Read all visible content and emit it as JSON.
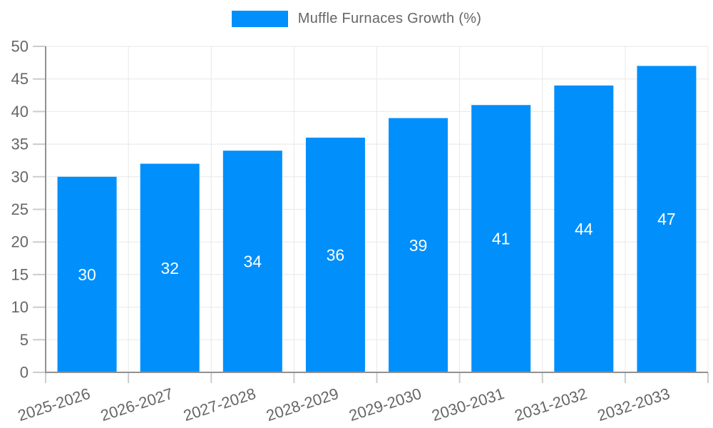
{
  "chart_data": {
    "type": "bar",
    "title": "Muffle Furnaces Growth (%)",
    "categories": [
      "2025-2026",
      "2026-2027",
      "2027-2028",
      "2028-2029",
      "2029-2030",
      "2030-2031",
      "2031-2032",
      "2032-2033"
    ],
    "series": [
      {
        "name": "Muffle Furnaces Growth (%)",
        "values": [
          30,
          32,
          34,
          36,
          39,
          41,
          44,
          47
        ],
        "color": "#008FFB"
      }
    ],
    "xlabel": "",
    "ylabel": "",
    "ylim": [
      0,
      50
    ],
    "yticks": [
      0,
      5,
      10,
      15,
      20,
      25,
      30,
      35,
      40,
      45,
      50
    ],
    "grid": true,
    "legend_position": "top",
    "value_labels": "inside-middle"
  },
  "style": {
    "bar_color": "#008FFB",
    "axis_text_color": "#666666",
    "value_label_color": "#ffffff",
    "gridline_color": "#e8e8e8",
    "tick_color": "#cccccc",
    "axis_line_color": "#919191",
    "background": "#ffffff",
    "x_label_rotation": -18
  }
}
